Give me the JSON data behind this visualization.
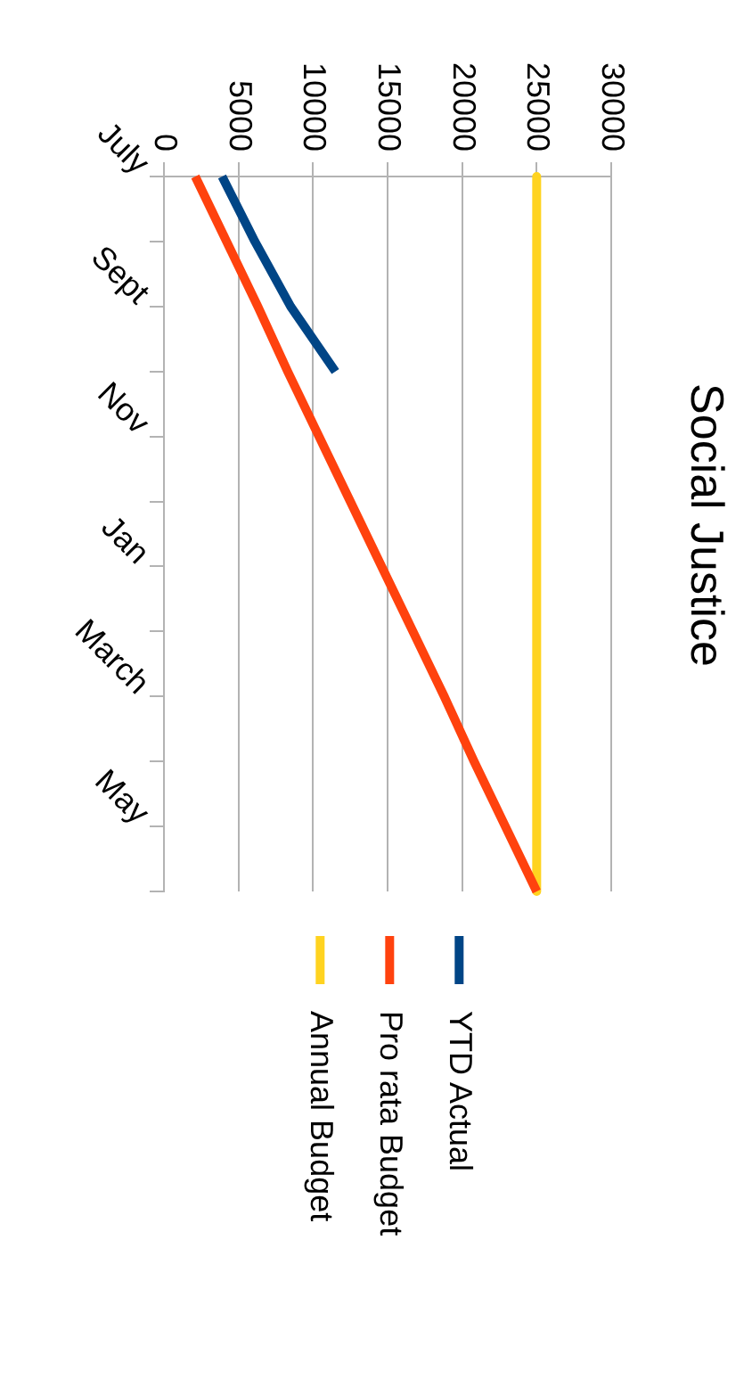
{
  "chart_data": {
    "type": "line",
    "title": "Social Justice",
    "categories": [
      "July",
      null,
      "Sept",
      null,
      "Nov",
      null,
      "Jan",
      null,
      "March",
      null,
      "May",
      null
    ],
    "series": [
      {
        "name": "YTD Actual",
        "color": "#004586",
        "values": [
          3900,
          6100,
          8500,
          11500,
          null,
          null,
          null,
          null,
          null,
          null,
          null,
          null
        ]
      },
      {
        "name": "Pro rata Budget",
        "color": "#ff420e",
        "values": [
          2100,
          4200,
          6300,
          8300,
          10400,
          12500,
          14600,
          16700,
          18800,
          20800,
          22900,
          25000
        ]
      },
      {
        "name": "Annual Budget",
        "color": "#ffd320",
        "values": [
          25000,
          25000,
          25000,
          25000,
          25000,
          25000,
          25000,
          25000,
          25000,
          25000,
          25000,
          25000
        ]
      }
    ],
    "orientation": "horizontal",
    "xlim": [
      0,
      30000
    ],
    "xticks": [
      0,
      5000,
      10000,
      15000,
      20000,
      25000,
      30000
    ],
    "grid": "x",
    "legend": "bottom",
    "marker": "none",
    "line_style": "solid"
  }
}
